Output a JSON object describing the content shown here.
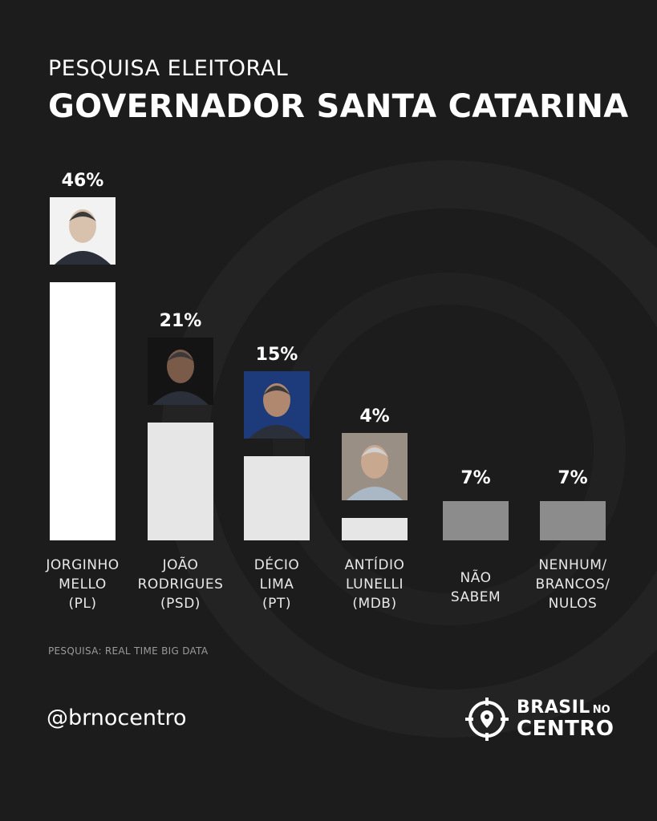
{
  "header": {
    "subtitle": "PESQUISA ELEITORAL",
    "title": "GOVERNADOR SANTA CATARINA"
  },
  "chart_data": {
    "type": "bar",
    "title": "GOVERNADOR SANTA CATARINA",
    "subtitle": "PESQUISA ELEITORAL",
    "xlabel": "",
    "ylabel": "",
    "ylim": [
      0,
      46
    ],
    "grid": false,
    "categories": [
      [
        "JORGINHO",
        "MELLO",
        "(PL)"
      ],
      [
        "JOÃO",
        "RODRIGUES",
        "(PSD)"
      ],
      [
        "DÉCIO",
        "LIMA",
        "(PT)"
      ],
      [
        "ANTÍDIO",
        "LUNELLI",
        "(MDB)"
      ],
      [
        "NÃO",
        "SABEM"
      ],
      [
        "NENHUM/",
        "BRANCOS/",
        "NULOS"
      ]
    ],
    "values": [
      46,
      21,
      15,
      4,
      7,
      7
    ],
    "value_labels": [
      "46%",
      "21%",
      "15%",
      "4%",
      "7%",
      "7%"
    ],
    "bar_colors": [
      "#ffffff",
      "#e6e6e6",
      "#e6e6e6",
      "#e6e6e6",
      "#8c8c8c",
      "#8c8c8c"
    ],
    "has_photo": [
      true,
      true,
      true,
      true,
      false,
      false
    ]
  },
  "footer": {
    "source": "PESQUISA: REAL TIME BIG DATA",
    "handle": "@brnocentro",
    "logo_brasil": "BRASIL",
    "logo_no": "NO",
    "logo_centro": "CENTRO"
  },
  "colors": {
    "background": "#1c1c1c",
    "text": "#ffffff",
    "muted": "#9a9a9a"
  }
}
